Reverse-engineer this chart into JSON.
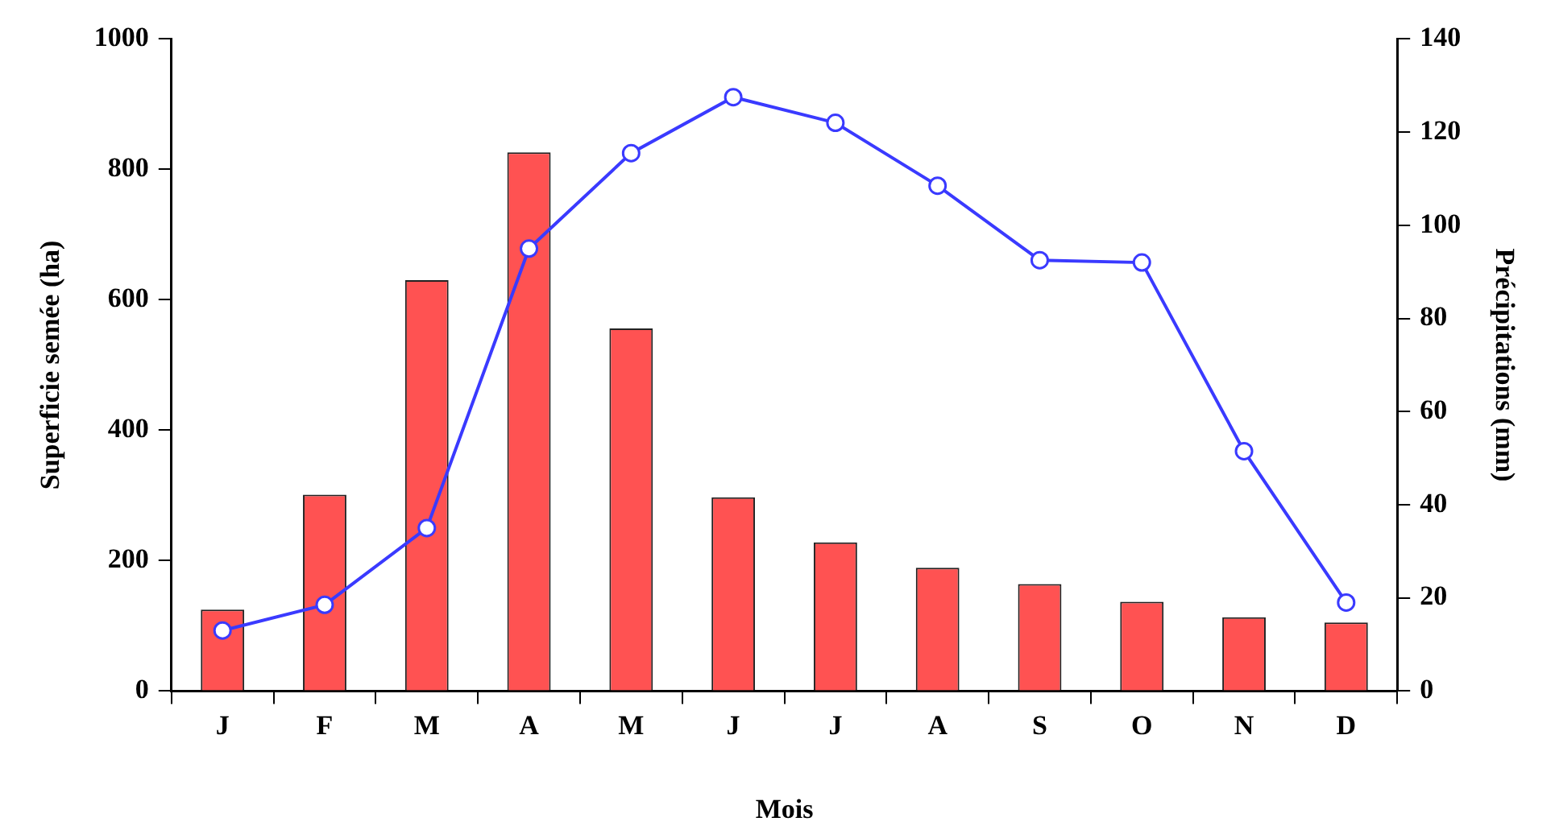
{
  "chart_data": {
    "type": "bar",
    "xlabel": "Mois",
    "ylabel": "Superficie semée (ha)",
    "y2label": "Précipitations (mm)",
    "categories": [
      "J",
      "F",
      "M",
      "A",
      "M",
      "J",
      "J",
      "A",
      "S",
      "O",
      "N",
      "D"
    ],
    "series": [
      {
        "color": "#ff5252",
        "values": [
          125,
          301,
          630,
          826,
          556,
          297,
          228,
          189,
          164,
          137,
          113,
          105
        ]
      },
      {
        "type": "line",
        "axis": "y2",
        "color": "#3a3aff",
        "values": [
          13,
          18.5,
          35,
          95,
          115.5,
          127.5,
          122,
          108.5,
          92.5,
          92,
          51.5,
          19
        ]
      }
    ],
    "ylim": [
      0,
      1000
    ],
    "yticks": [
      0,
      200,
      400,
      600,
      800,
      1000
    ],
    "y2lim": [
      0,
      140
    ],
    "y2ticks": [
      0,
      20,
      40,
      60,
      80,
      100,
      120,
      140
    ],
    "grid": false,
    "legend": false,
    "marker": "circle",
    "line_style": "solid"
  }
}
